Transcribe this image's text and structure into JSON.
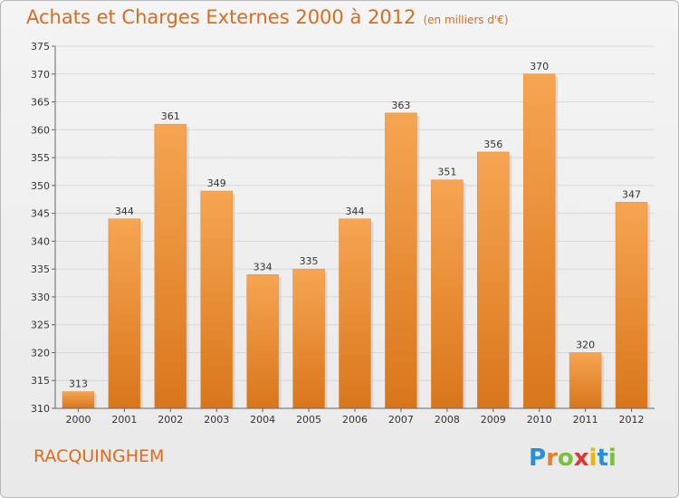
{
  "header": {
    "title": "Achats et Charges Externes 2000 à 2012",
    "subtitle": "(en milliers d'€)"
  },
  "footer": {
    "commune": "RACQUINGHEM",
    "logo_letters": [
      "P",
      "r",
      "o",
      "x",
      "i",
      "t",
      "i"
    ],
    "logo_colors": [
      "#2a8fd6",
      "#ef7d22",
      "#7bbf3a",
      "#e3342f",
      "#f2b400",
      "#2a8fd6",
      "#7bbf3a"
    ]
  },
  "chart_data": {
    "type": "bar",
    "categories": [
      "2000",
      "2001",
      "2002",
      "2003",
      "2004",
      "2005",
      "2006",
      "2007",
      "2008",
      "2009",
      "2010",
      "2011",
      "2012"
    ],
    "values": [
      313,
      344,
      361,
      349,
      334,
      335,
      344,
      363,
      351,
      356,
      370,
      320,
      347
    ],
    "ylim": [
      310,
      375
    ],
    "yticks": [
      310,
      315,
      320,
      325,
      330,
      335,
      340,
      345,
      350,
      355,
      360,
      365,
      370,
      375
    ],
    "grid": true,
    "colors": {
      "bar_top": "#f6a552",
      "bar_bottom": "#d9761c",
      "grid": "#d7d7d7",
      "axis": "#666666",
      "text": "#333333"
    }
  }
}
